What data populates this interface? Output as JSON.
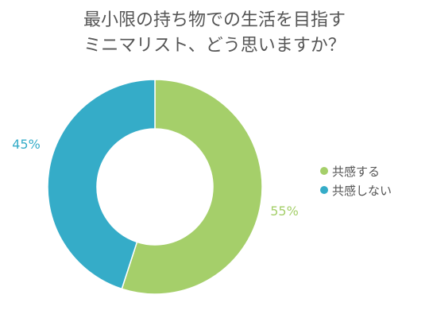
{
  "chart_data": {
    "type": "pie",
    "title": [
      "最小限の持ち物での生活を目指す",
      "ミニマリスト、どう思いますか？"
    ],
    "slices": [
      {
        "label": "共感する",
        "value": 55,
        "value_label": "55%",
        "color": "#a5cf6a"
      },
      {
        "label": "共感しない",
        "value": 45,
        "value_label": "45%",
        "color": "#35acc8"
      }
    ],
    "legend_position": "right",
    "donut": true
  }
}
